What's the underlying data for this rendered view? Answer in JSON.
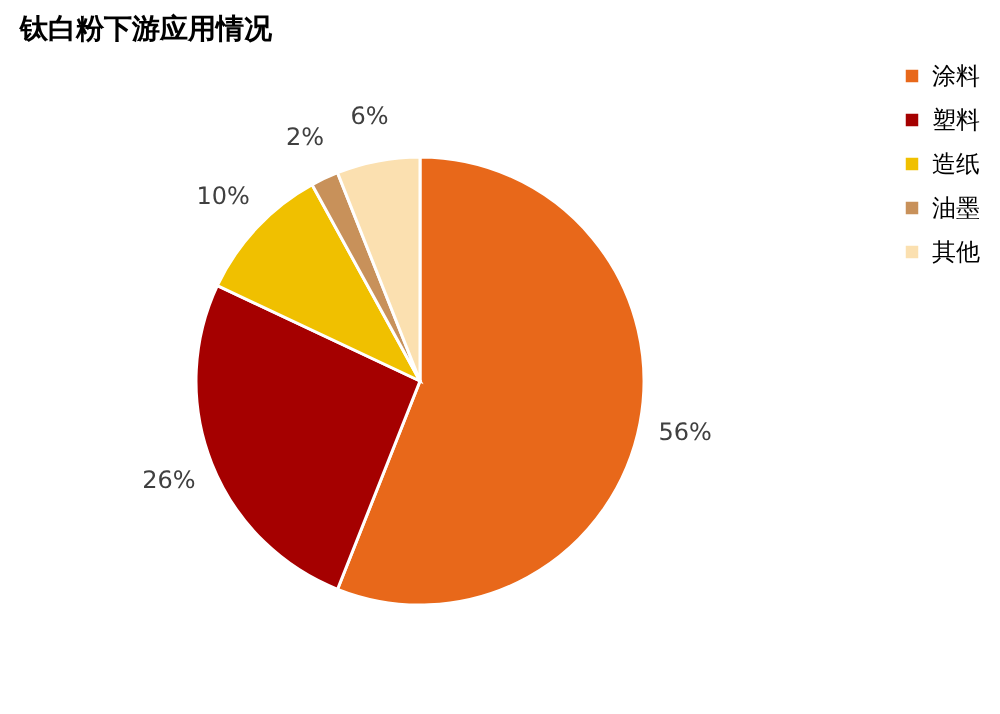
{
  "chart_data": {
    "type": "pie",
    "title": "钛白粉下游应用情况",
    "categories": [
      "涂料",
      "塑料",
      "造纸",
      "油墨",
      "其他"
    ],
    "values": [
      56,
      26,
      10,
      2,
      6
    ],
    "colors": [
      "#e8681a",
      "#a50000",
      "#f0c000",
      "#c8915a",
      "#fbe0b0"
    ],
    "value_labels": [
      "56%",
      "26%",
      "10%",
      "2%",
      "6%"
    ],
    "legend": "right"
  }
}
